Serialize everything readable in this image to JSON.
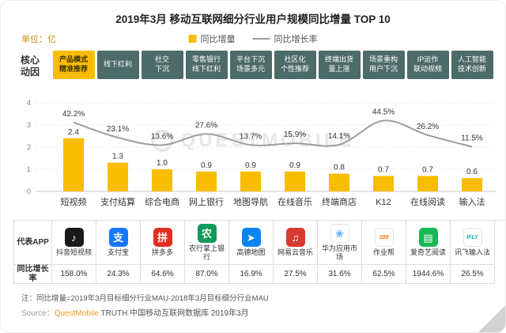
{
  "header": {
    "title": "2019年3月 移动互联网细分行业用户规模同比增量 TOP 10",
    "unit_label": "单位：亿",
    "legend": {
      "bar_label": "同比增量",
      "line_label": "同比增长率"
    }
  },
  "core_driver_label": "核心\n动因",
  "chart_data": {
    "type": "bar+line",
    "title": "2019年3月 移动互联网细分行业用户规模同比增量 TOP 10",
    "unit": "亿",
    "categories": [
      "短视频",
      "支付结算",
      "综合电商",
      "网上银行",
      "地图导航",
      "在线音乐",
      "终端商店",
      "K12",
      "在线阅读",
      "输入法"
    ],
    "drivers": [
      "产品模式\n精准推荐",
      "线下红利",
      "社交\n下沉",
      "零售银行\n线下红利",
      "平台下沉\n场景多元",
      "社区化\n个性推荐",
      "终端出货\n量上涨",
      "场景重构\n用户下沉",
      "IP运作\n联动视频",
      "人工智能\n技术创新"
    ],
    "driver_highlight_index": 0,
    "series": [
      {
        "name": "同比增量",
        "type": "bar",
        "values": [
          2.4,
          1.3,
          1.0,
          0.9,
          0.9,
          0.9,
          0.8,
          0.7,
          0.7,
          0.6
        ]
      },
      {
        "name": "同比增长率",
        "type": "line",
        "values_pct": [
          42.2,
          23.1,
          13.6,
          27.6,
          13.7,
          15.9,
          14.1,
          44.5,
          26.2,
          11.5
        ]
      }
    ],
    "ylim": [
      0,
      4
    ],
    "yticks": [
      0,
      1,
      2,
      3,
      4
    ],
    "grid": true,
    "legend_position": "top"
  },
  "table": {
    "row_headers": [
      "代表APP",
      "同比增长率"
    ],
    "columns": [
      {
        "app": "抖音短视频",
        "growth": "158.0%",
        "icon": {
          "name": "douyin-icon",
          "glyph": "♪",
          "bg": "#1a1a1a",
          "fg": "#ffffff"
        }
      },
      {
        "app": "支付宝",
        "growth": "24.3%",
        "icon": {
          "name": "alipay-icon",
          "glyph": "支",
          "bg": "#1677ff",
          "fg": "#ffffff"
        }
      },
      {
        "app": "拼多多",
        "growth": "64.6%",
        "icon": {
          "name": "pinduoduo-icon",
          "glyph": "拼",
          "bg": "#e22e1f",
          "fg": "#ffffff"
        }
      },
      {
        "app": "农行掌上银行",
        "growth": "87.0%",
        "icon": {
          "name": "abc-mobile-bank-icon",
          "glyph": "农",
          "bg": "#0e9a5a",
          "fg": "#ffffff"
        }
      },
      {
        "app": "高德地图",
        "growth": "16.9%",
        "icon": {
          "name": "amap-icon",
          "glyph": "➤",
          "bg": "#0b83f2",
          "fg": "#ffffff"
        }
      },
      {
        "app": "网易云音乐",
        "growth": "27.5%",
        "icon": {
          "name": "netease-cloud-music-icon",
          "glyph": "♫",
          "bg": "#d83a31",
          "fg": "#ffffff"
        }
      },
      {
        "app": "华为应用市场",
        "growth": "31.6%",
        "icon": {
          "name": "huawei-appgallery-icon",
          "glyph": "❀",
          "bg": "#ffffff",
          "fg": "#59adf7",
          "border": "#e3e3e3"
        }
      },
      {
        "app": "作业帮",
        "growth": "62.5%",
        "icon": {
          "name": "zuoyebang-icon",
          "glyph": "100",
          "bg": "#ffffff",
          "fg": "#ff6a00",
          "border": "#e3e3e3",
          "small": true
        }
      },
      {
        "app": "爱奇艺阅读",
        "growth": "1944.6%",
        "icon": {
          "name": "iqiyi-reading-icon",
          "glyph": "▤",
          "bg": "#19b955",
          "fg": "#ffffff"
        }
      },
      {
        "app": "讯飞输入法",
        "growth": "26.5%",
        "icon": {
          "name": "ifly-ime-icon",
          "glyph": "iFLY",
          "bg": "#ffffff",
          "fg": "#00b3a4",
          "border": "#e3e3e3",
          "small": true
        }
      }
    ]
  },
  "footer": {
    "note": "注：同比增量=2019年3月目标细分行业MAU-2018年3月目标细分行业MAU",
    "source_prefix": "Source：",
    "source_brand": "QuestMobile",
    "source_rest": " TRUTH 中国移动互联网数据库 2019年3月"
  },
  "watermark": "QUESTMOBILE",
  "colors": {
    "bar": "#f9bd00",
    "line": "#9e9e9e",
    "chip_bg": "#4d6b68",
    "chip_fg": "#ffffff",
    "chip_highlight_bg": "#f9bd00",
    "chip_highlight_fg": "#3f3000",
    "unit_label": "#c9920a",
    "brand_orange": "#f59a23"
  }
}
